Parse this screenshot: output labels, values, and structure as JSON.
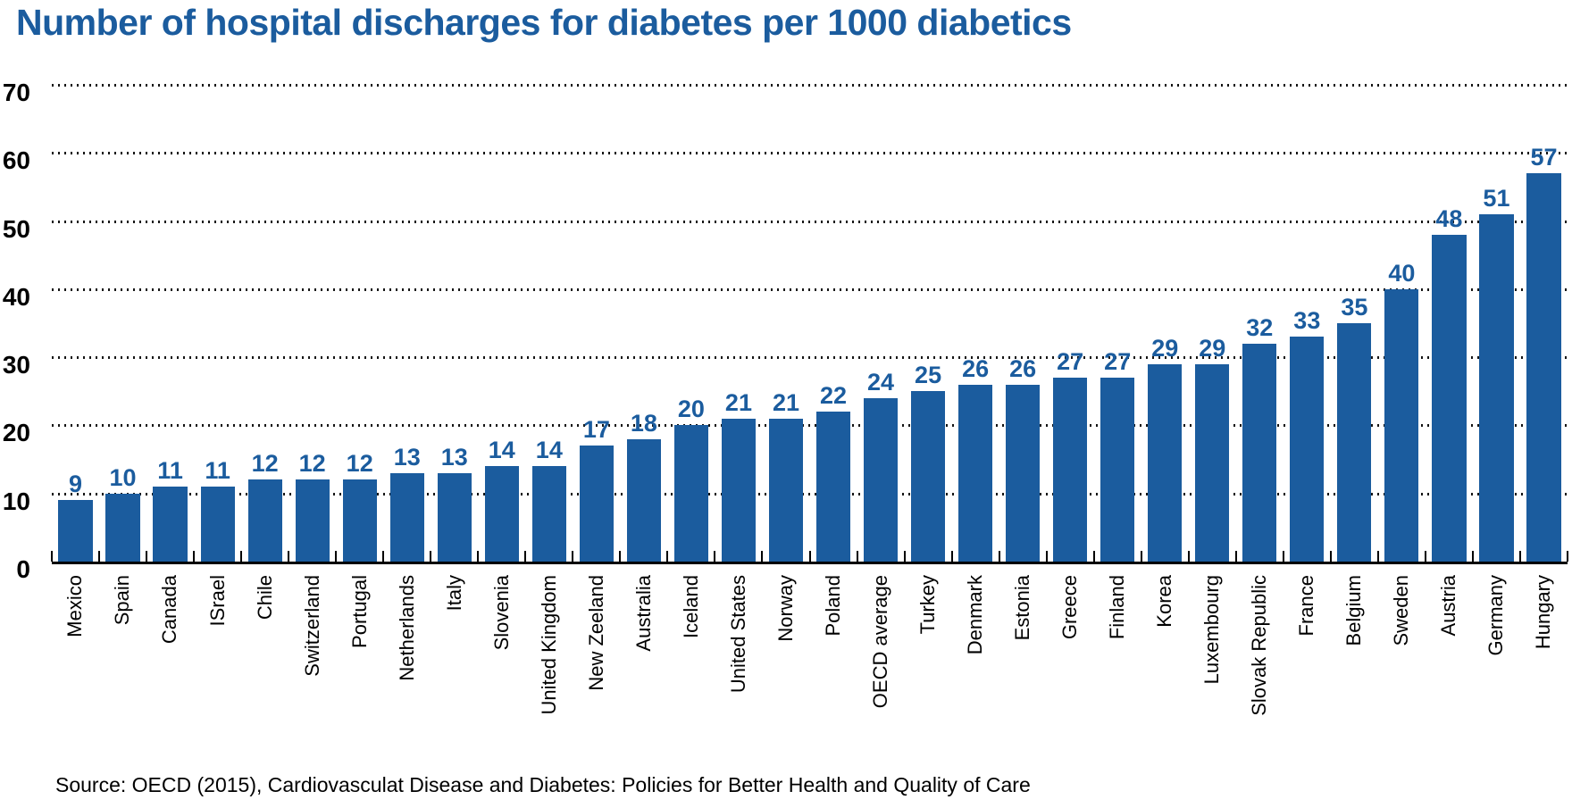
{
  "title": "Number of hospital discharges for diabetes per 1000 diabetics",
  "source": "Source: OECD (2015), Cardiovasculat Disease and Diabetes: Policies for Better Health and Quality of Care",
  "colors": {
    "accent_blue": "#1B5C9E",
    "axis_black": "#000000",
    "background": "#ffffff"
  },
  "chart_data": {
    "type": "bar",
    "title": "Number of hospital discharges for diabetes per 1000 diabetics",
    "xlabel": "",
    "ylabel": "",
    "ylim": [
      0,
      70
    ],
    "yticks": [
      0,
      10,
      20,
      30,
      40,
      50,
      60,
      70
    ],
    "grid": "horizontal-dotted",
    "legend": "none",
    "value_labels": "above-bars",
    "bar_color": "#1B5C9E",
    "categories": [
      "Mexico",
      "Spain",
      "Canada",
      "ISrael",
      "Chile",
      "Switzerland",
      "Portugal",
      "Netherlands",
      "Italy",
      "Slovenia",
      "United Kingdom",
      "New Zeeland",
      "Australia",
      "Iceland",
      "United States",
      "Norway",
      "Poland",
      "OECD average",
      "Turkey",
      "Denmark",
      "Estonia",
      "Greece",
      "Finland",
      "Korea",
      "Luxembourg",
      "Slovak Republic",
      "France",
      "Belgium",
      "Sweden",
      "Austria",
      "Germany",
      "Hungary"
    ],
    "values": [
      9,
      10,
      11,
      11,
      12,
      12,
      12,
      13,
      13,
      14,
      14,
      17,
      18,
      20,
      21,
      21,
      22,
      24,
      25,
      26,
      26,
      27,
      27,
      29,
      29,
      32,
      33,
      35,
      40,
      48,
      51,
      57
    ]
  }
}
